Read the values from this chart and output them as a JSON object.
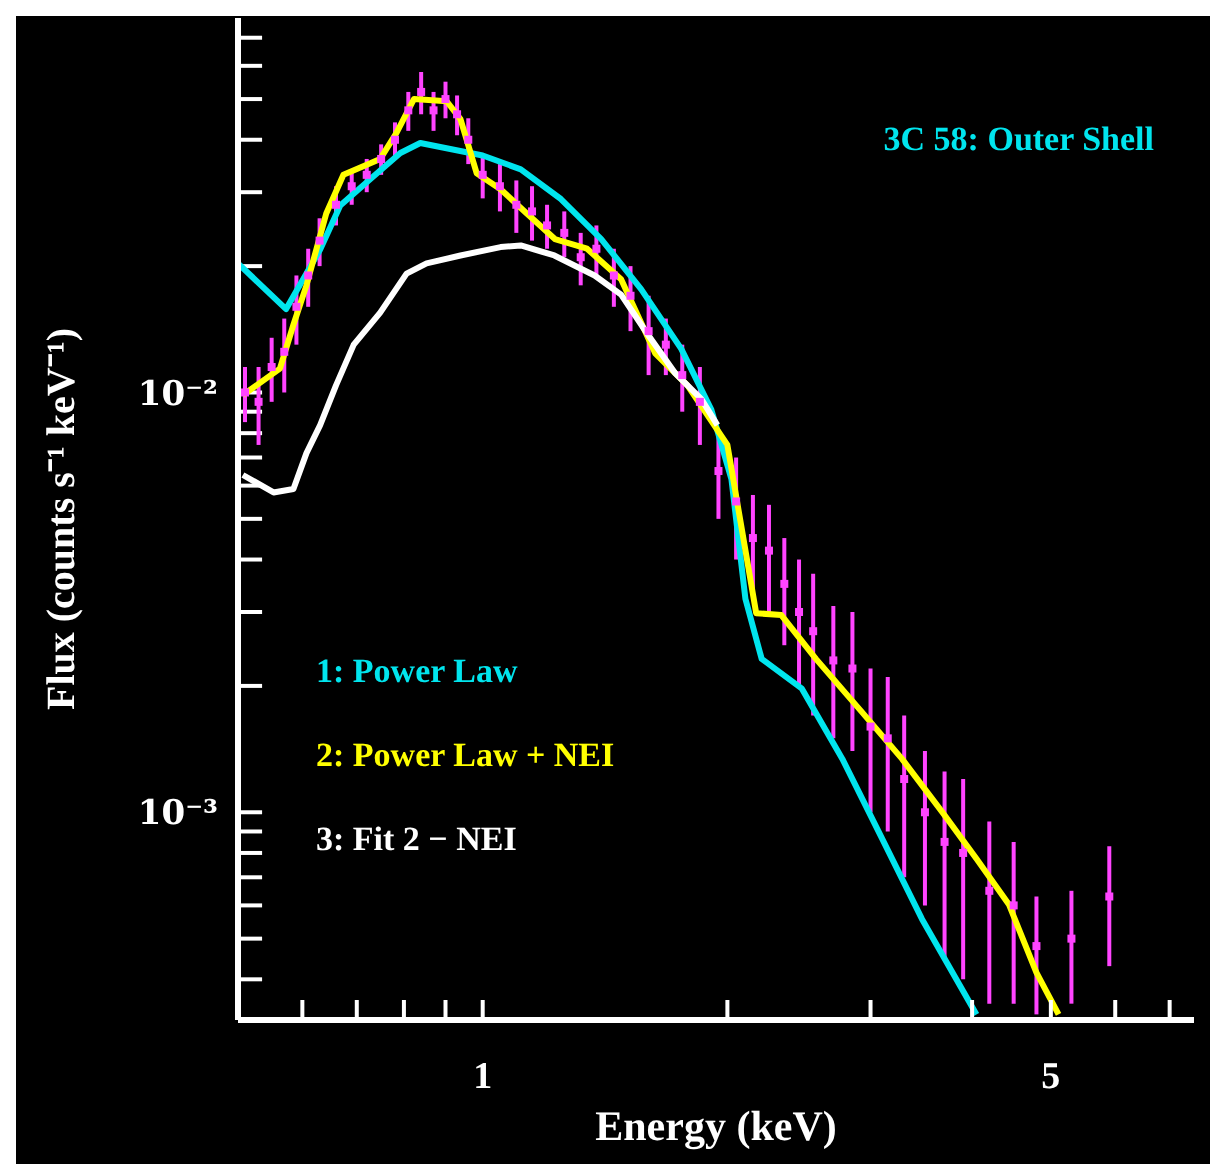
{
  "chart_data": {
    "type": "line",
    "title": "3C 58: Outer Shell",
    "xlabel": "Energy (keV)",
    "ylabel": "Flux (counts s⁻¹ keV⁻¹)",
    "log": "xy",
    "xlim": [
      0.5,
      7.5
    ],
    "ylim": [
      0.00032,
      0.078
    ],
    "xticks": [
      {
        "value": 0.6,
        "label": null
      },
      {
        "value": 0.7,
        "label": null
      },
      {
        "value": 0.8,
        "label": null
      },
      {
        "value": 0.9,
        "label": null
      },
      1,
      {
        "value": 2,
        "label": null
      },
      {
        "value": 3,
        "label": null
      },
      {
        "value": 4,
        "label": null
      },
      5,
      {
        "value": 6,
        "label": null
      },
      {
        "value": 7,
        "label": null
      }
    ],
    "yticks": [
      {
        "value": 0.0004,
        "label": null
      },
      {
        "value": 0.0005,
        "label": null
      },
      {
        "value": 0.0006,
        "label": null
      },
      {
        "value": 0.0007,
        "label": null
      },
      {
        "value": 0.0008,
        "label": null
      },
      {
        "value": 0.0009,
        "label": null
      },
      {
        "value": 0.001,
        "label": "10⁻³"
      },
      {
        "value": 0.002,
        "label": null
      },
      {
        "value": 0.003,
        "label": null
      },
      {
        "value": 0.004,
        "label": null
      },
      {
        "value": 0.005,
        "label": null
      },
      {
        "value": 0.006,
        "label": null
      },
      {
        "value": 0.007,
        "label": null
      },
      {
        "value": 0.008,
        "label": null
      },
      {
        "value": 0.009,
        "label": null
      },
      {
        "value": 0.01,
        "label": "10⁻²"
      },
      {
        "value": 0.02,
        "label": null
      },
      {
        "value": 0.03,
        "label": null
      },
      {
        "value": 0.04,
        "label": null
      },
      {
        "value": 0.05,
        "label": null
      },
      {
        "value": 0.06,
        "label": null
      },
      {
        "value": 0.07,
        "label": null
      }
    ],
    "grid": false,
    "legend": "left",
    "marker": "none",
    "line_style": "solid",
    "series": [
      {
        "type": "scatter",
        "marker": "square",
        "color": "#ff44ff",
        "x": [
          0.51,
          0.53,
          0.55,
          0.57,
          0.59,
          0.61,
          0.63,
          0.66,
          0.69,
          0.72,
          0.75,
          0.78,
          0.81,
          0.84,
          0.87,
          0.9,
          0.93,
          0.96,
          1.0,
          1.05,
          1.1,
          1.15,
          1.2,
          1.26,
          1.32,
          1.38,
          1.45,
          1.52,
          1.6,
          1.68,
          1.76,
          1.85,
          1.95,
          2.05,
          2.15,
          2.25,
          2.35,
          2.45,
          2.55,
          2.7,
          2.85,
          3.0,
          3.15,
          3.3,
          3.5,
          3.7,
          3.9,
          4.2,
          4.5,
          4.8,
          5.3,
          5.9
        ],
        "values": [
          0.01,
          0.0095,
          0.0115,
          0.0125,
          0.016,
          0.019,
          0.023,
          0.028,
          0.031,
          0.033,
          0.036,
          0.04,
          0.047,
          0.052,
          0.047,
          0.05,
          0.046,
          0.04,
          0.033,
          0.031,
          0.028,
          0.027,
          0.025,
          0.024,
          0.021,
          0.022,
          0.019,
          0.017,
          0.014,
          0.013,
          0.011,
          0.0095,
          0.0065,
          0.0055,
          0.0045,
          0.0042,
          0.0035,
          0.003,
          0.0027,
          0.0023,
          0.0022,
          0.0016,
          0.0015,
          0.0012,
          0.001,
          0.00085,
          0.0008,
          0.00065,
          0.0006,
          0.00048,
          0.0005,
          0.00063
        ],
        "errors": [
          0.0015,
          0.002,
          0.002,
          0.0025,
          0.003,
          0.003,
          0.003,
          0.003,
          0.003,
          0.003,
          0.003,
          0.004,
          0.005,
          0.006,
          0.005,
          0.005,
          0.005,
          0.005,
          0.004,
          0.004,
          0.004,
          0.004,
          0.003,
          0.003,
          0.003,
          0.003,
          0.003,
          0.003,
          0.003,
          0.002,
          0.002,
          0.002,
          0.0015,
          0.0015,
          0.0012,
          0.0012,
          0.001,
          0.001,
          0.001,
          0.0008,
          0.0008,
          0.0006,
          0.0006,
          0.0005,
          0.0004,
          0.0004,
          0.0004,
          0.0003,
          0.00025,
          0.00015,
          0.00015,
          0.0002
        ]
      },
      {
        "name": "1: Power Law",
        "color": "#00e5ee",
        "x": [
          0.5,
          0.573,
          0.631,
          0.668,
          0.727,
          0.792,
          0.838,
          1.0,
          1.114,
          1.248,
          1.399,
          1.567,
          1.755,
          1.911,
          2.023,
          2.105,
          2.204,
          2.47,
          2.77,
          3.1,
          3.47,
          4.05
        ],
        "values": [
          0.0203,
          0.0158,
          0.0219,
          0.0279,
          0.0322,
          0.0372,
          0.0393,
          0.0367,
          0.034,
          0.0289,
          0.0232,
          0.0176,
          0.0127,
          0.0091,
          0.00622,
          0.00322,
          0.00232,
          0.00197,
          0.00134,
          0.000865,
          0.000557,
          0.00033
        ]
      },
      {
        "name": "2: Power Law + NEI",
        "color": "#ffff00",
        "x": [
          0.507,
          0.563,
          0.585,
          0.607,
          0.642,
          0.674,
          0.748,
          0.783,
          0.823,
          0.903,
          0.939,
          0.983,
          1.052,
          1.133,
          1.227,
          1.344,
          1.48,
          1.63,
          1.786,
          2.0,
          2.17,
          2.33,
          2.57,
          2.93,
          3.28,
          3.68,
          4.05,
          4.44,
          4.8,
          5.11
        ],
        "values": [
          0.00986,
          0.0114,
          0.0145,
          0.018,
          0.0267,
          0.033,
          0.036,
          0.0415,
          0.05,
          0.0494,
          0.0448,
          0.0333,
          0.0305,
          0.0267,
          0.0232,
          0.022,
          0.0186,
          0.0124,
          0.0104,
          0.0075,
          0.00298,
          0.00295,
          0.00232,
          0.00173,
          0.00134,
          0.000998,
          0.000775,
          0.000603,
          0.000415,
          0.00033
        ]
      },
      {
        "name": "3: Fit 2 − NEI",
        "color": "#ffffff",
        "x": [
          0.507,
          0.553,
          0.585,
          0.607,
          0.631,
          0.66,
          0.694,
          0.748,
          0.806,
          0.853,
          0.939,
          1.052,
          1.114,
          1.225,
          1.373,
          1.48,
          1.594,
          1.726,
          1.858,
          1.944
        ],
        "values": [
          0.00636,
          0.00578,
          0.00589,
          0.00717,
          0.00836,
          0.0104,
          0.013,
          0.0155,
          0.0192,
          0.0203,
          0.0212,
          0.0222,
          0.0224,
          0.0212,
          0.019,
          0.0171,
          0.0138,
          0.0111,
          0.00964,
          0.00836
        ]
      }
    ]
  }
}
